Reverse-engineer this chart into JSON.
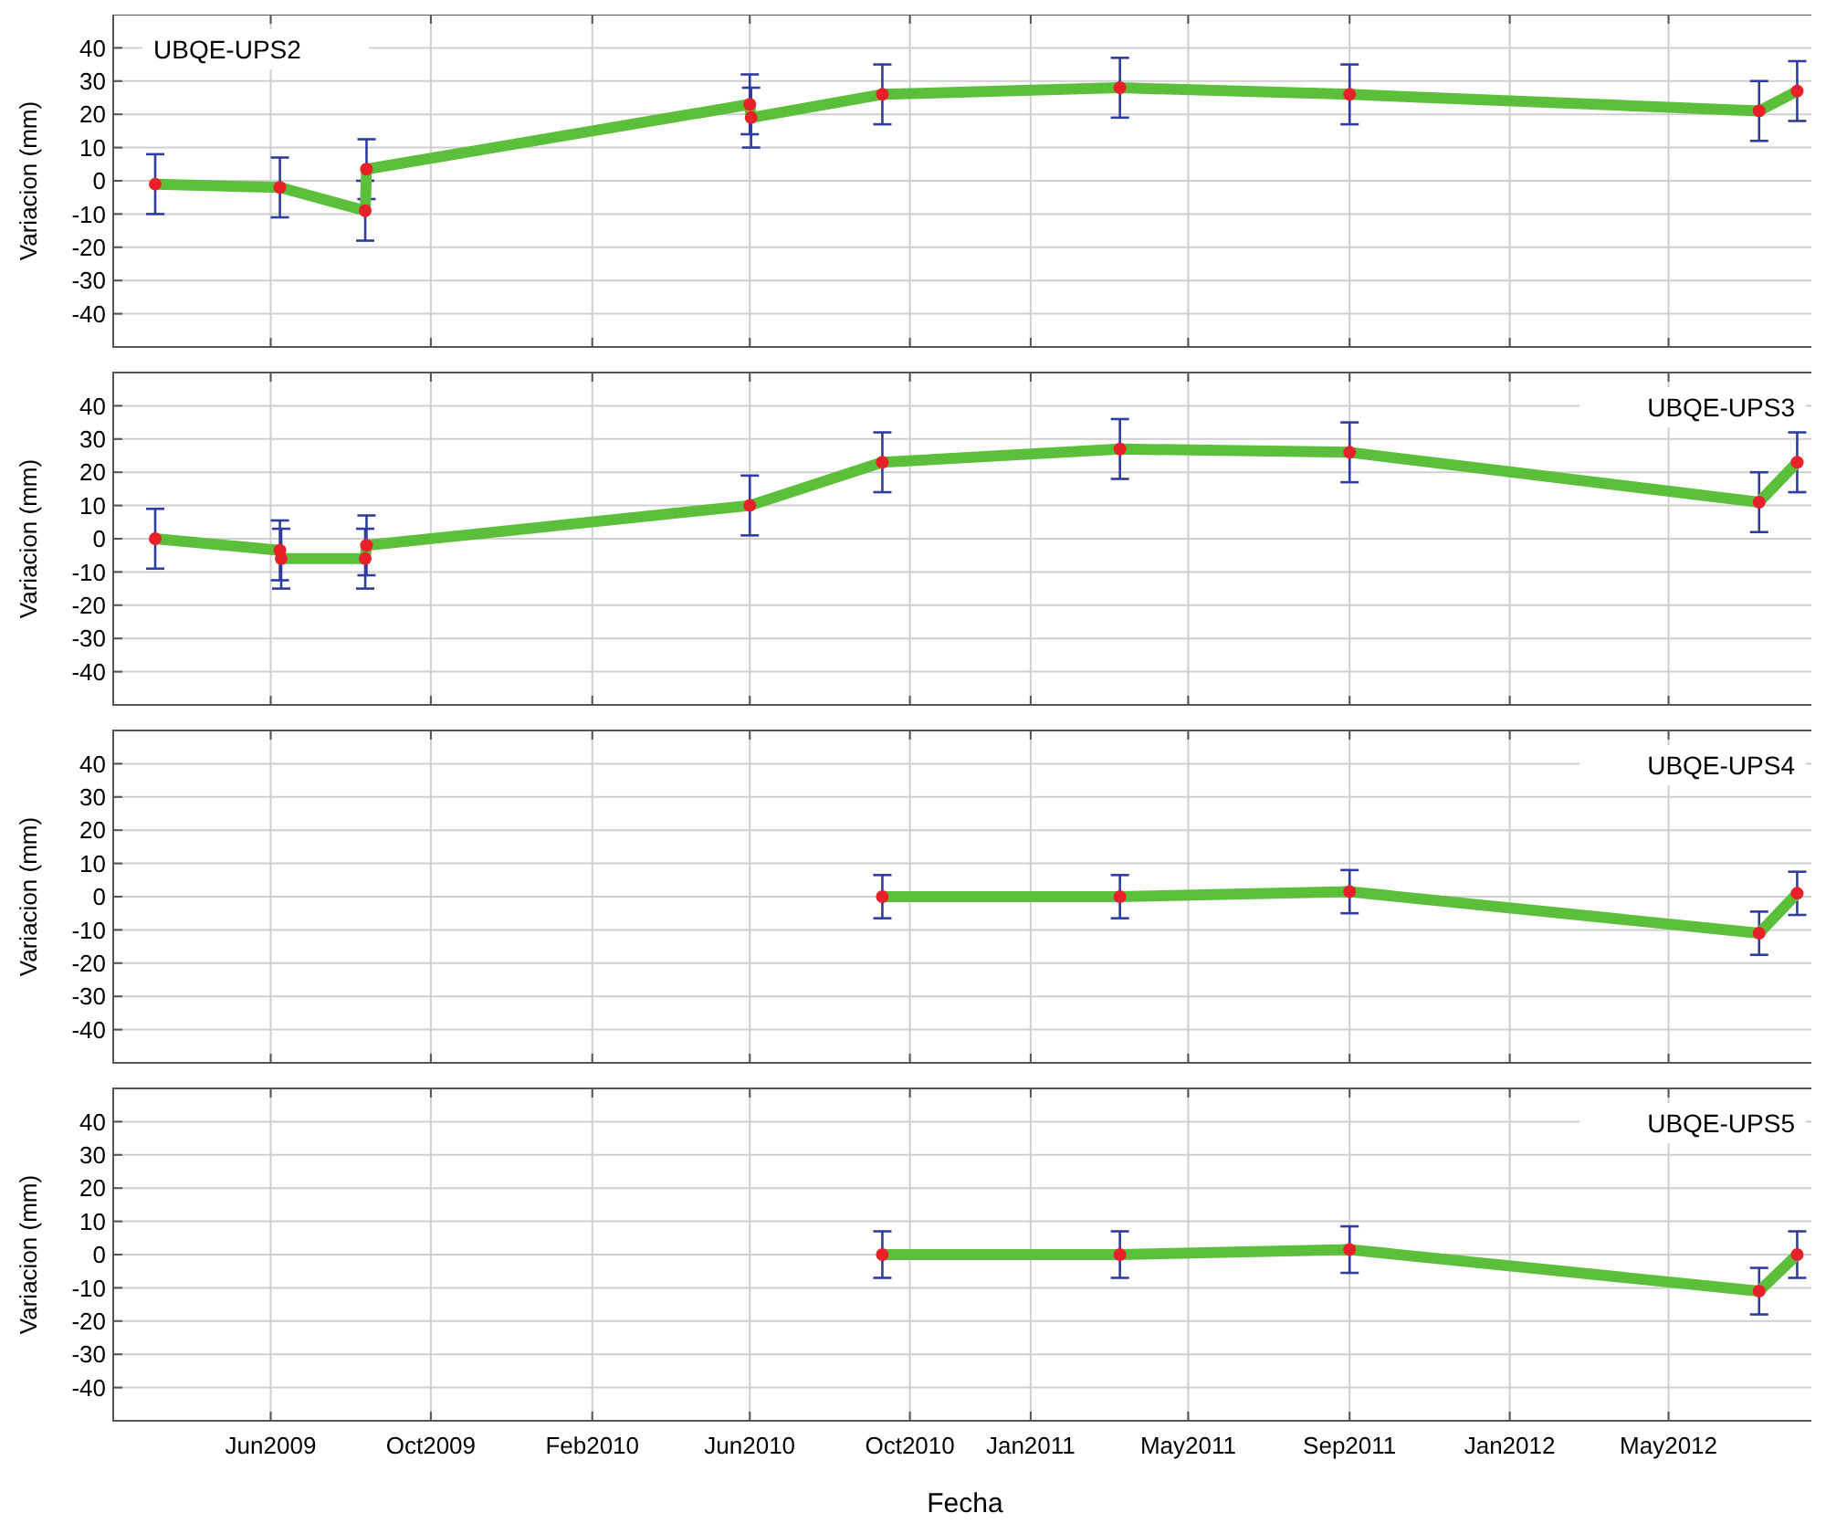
{
  "chart_data": [
    {
      "type": "line",
      "ylabel": "Variacion (mm)",
      "annotations": [
        "UBQE-UPS2"
      ],
      "xlim": [
        "2009-02-01",
        "2012-08-22"
      ],
      "ylim": [
        -50,
        50
      ],
      "yticks": [
        -40,
        -30,
        -20,
        -10,
        0,
        10,
        20,
        30,
        40
      ],
      "xticks": [
        {
          "value": "2009-06-01",
          "label": null
        },
        {
          "value": "2009-10-01",
          "label": null
        },
        {
          "value": "2010-02-01",
          "label": null
        },
        {
          "value": "2010-06-01",
          "label": null
        },
        {
          "value": "2010-10-01",
          "label": null
        },
        {
          "value": "2011-01-01",
          "label": null
        },
        {
          "value": "2011-05-01",
          "label": null
        },
        {
          "value": "2011-09-01",
          "label": null
        },
        {
          "value": "2012-01-01",
          "label": null
        },
        {
          "value": "2012-05-01",
          "label": null
        }
      ],
      "tick_labels": "y",
      "grid": true,
      "marker": "circle",
      "line_style": "solid",
      "series": [
        {
          "color": "#5cbf3c",
          "x": [
            "2009-03-05",
            "2009-06-08",
            "2009-08-12",
            "2009-08-13",
            "2010-06-01",
            "2010-06-02",
            "2010-09-10",
            "2011-03-10",
            "2011-09-01",
            "2012-07-09",
            "2012-08-07"
          ],
          "values": [
            -1,
            -2,
            -9,
            3.5,
            23,
            19,
            26,
            28,
            26,
            21,
            27
          ],
          "errors": [
            9,
            9,
            9,
            9,
            9,
            9,
            9,
            9,
            9,
            9,
            9
          ]
        }
      ]
    },
    {
      "type": "line",
      "ylabel": "Variacion (mm)",
      "annotations": [
        "UBQE-UPS3"
      ],
      "xlim": [
        "2009-02-01",
        "2012-08-22"
      ],
      "ylim": [
        -50,
        50
      ],
      "yticks": [
        -40,
        -30,
        -20,
        -10,
        0,
        10,
        20,
        30,
        40
      ],
      "xticks": [
        {
          "value": "2009-06-01",
          "label": null
        },
        {
          "value": "2009-10-01",
          "label": null
        },
        {
          "value": "2010-02-01",
          "label": null
        },
        {
          "value": "2010-06-01",
          "label": null
        },
        {
          "value": "2010-10-01",
          "label": null
        },
        {
          "value": "2011-01-01",
          "label": null
        },
        {
          "value": "2011-05-01",
          "label": null
        },
        {
          "value": "2011-09-01",
          "label": null
        },
        {
          "value": "2012-01-01",
          "label": null
        },
        {
          "value": "2012-05-01",
          "label": null
        }
      ],
      "tick_labels": "y",
      "grid": true,
      "marker": "circle",
      "line_style": "solid",
      "series": [
        {
          "color": "#5cbf3c",
          "x": [
            "2009-03-05",
            "2009-06-08",
            "2009-06-09",
            "2009-08-12",
            "2009-08-13",
            "2010-06-01",
            "2010-09-10",
            "2011-03-10",
            "2011-09-01",
            "2012-07-09",
            "2012-08-07"
          ],
          "values": [
            0,
            -3.5,
            -6,
            -6,
            -2,
            10,
            23,
            27,
            26,
            11,
            23
          ],
          "errors": [
            9,
            9,
            9,
            9,
            9,
            9,
            9,
            9,
            9,
            9,
            9
          ]
        }
      ]
    },
    {
      "type": "line",
      "ylabel": "Variacion (mm)",
      "annotations": [
        "UBQE-UPS4"
      ],
      "xlim": [
        "2009-02-01",
        "2012-08-22"
      ],
      "ylim": [
        -50,
        50
      ],
      "yticks": [
        -40,
        -30,
        -20,
        -10,
        0,
        10,
        20,
        30,
        40
      ],
      "xticks": [
        {
          "value": "2009-06-01",
          "label": null
        },
        {
          "value": "2009-10-01",
          "label": null
        },
        {
          "value": "2010-02-01",
          "label": null
        },
        {
          "value": "2010-06-01",
          "label": null
        },
        {
          "value": "2010-10-01",
          "label": null
        },
        {
          "value": "2011-01-01",
          "label": null
        },
        {
          "value": "2011-05-01",
          "label": null
        },
        {
          "value": "2011-09-01",
          "label": null
        },
        {
          "value": "2012-01-01",
          "label": null
        },
        {
          "value": "2012-05-01",
          "label": null
        }
      ],
      "tick_labels": "y",
      "grid": true,
      "marker": "circle",
      "line_style": "solid",
      "series": [
        {
          "color": "#5cbf3c",
          "x": [
            "2010-09-10",
            "2011-03-10",
            "2011-09-01",
            "2012-07-09",
            "2012-08-07"
          ],
          "values": [
            0,
            0,
            1.5,
            -11,
            1
          ],
          "errors": [
            6.5,
            6.5,
            6.5,
            6.5,
            6.5
          ]
        }
      ]
    },
    {
      "type": "line",
      "xlabel": "Fecha",
      "ylabel": "Variacion (mm)",
      "annotations": [
        "UBQE-UPS5"
      ],
      "xlim": [
        "2009-02-01",
        "2012-08-22"
      ],
      "ylim": [
        -50,
        50
      ],
      "yticks": [
        -40,
        -30,
        -20,
        -10,
        0,
        10,
        20,
        30,
        40
      ],
      "xticks": [
        {
          "value": "2009-06-01",
          "label": "Jun2009"
        },
        {
          "value": "2009-10-01",
          "label": "Oct2009"
        },
        {
          "value": "2010-02-01",
          "label": "Feb2010"
        },
        {
          "value": "2010-06-01",
          "label": "Jun2010"
        },
        {
          "value": "2010-10-01",
          "label": "Oct2010"
        },
        {
          "value": "2011-01-01",
          "label": "Jan2011"
        },
        {
          "value": "2011-05-01",
          "label": "May2011"
        },
        {
          "value": "2011-09-01",
          "label": "Sep2011"
        },
        {
          "value": "2012-01-01",
          "label": "Jan2012"
        },
        {
          "value": "2012-05-01",
          "label": "May2012"
        }
      ],
      "grid": true,
      "marker": "circle",
      "line_style": "solid",
      "series": [
        {
          "color": "#5cbf3c",
          "x": [
            "2010-09-10",
            "2011-03-10",
            "2011-09-01",
            "2012-07-09",
            "2012-08-07"
          ],
          "values": [
            0,
            0,
            1.5,
            -11,
            0
          ],
          "errors": [
            7,
            7,
            7,
            7,
            7
          ]
        }
      ]
    }
  ]
}
